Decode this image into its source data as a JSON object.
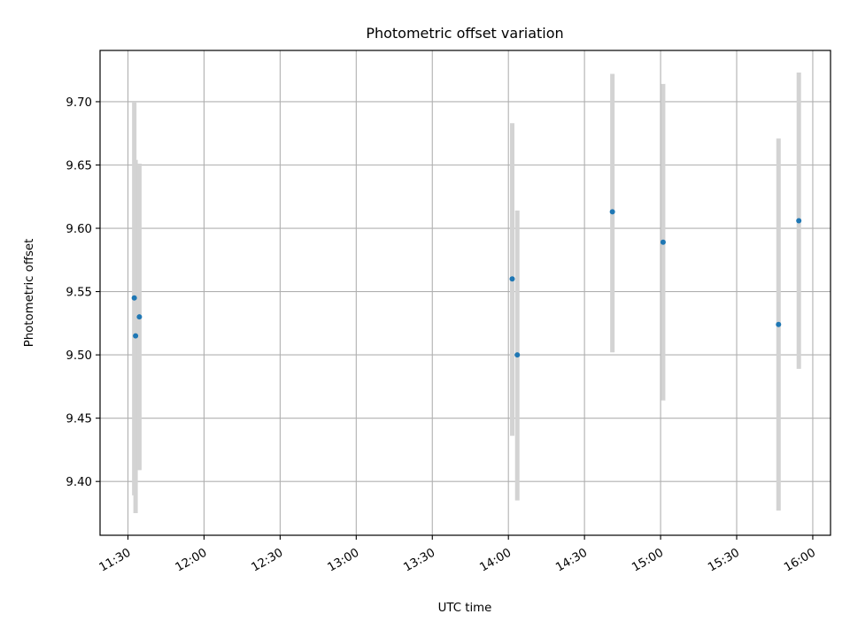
{
  "chart_data": {
    "type": "scatter",
    "title": "Photometric offset variation",
    "xlabel": "UTC time",
    "ylabel": "Photometric offset",
    "xlim": [
      "11:19",
      "16:07"
    ],
    "ylim": [
      9.3575,
      9.7405
    ],
    "x_ticks": [
      "11:30",
      "12:00",
      "12:30",
      "13:00",
      "13:30",
      "14:00",
      "14:30",
      "15:00",
      "15:30",
      "16:00"
    ],
    "y_ticks": [
      "9.40",
      "9.45",
      "9.50",
      "9.55",
      "9.60",
      "9.65",
      "9.70"
    ],
    "grid": true,
    "marker_color": "#1f77b4",
    "errorbar_color": "#d3d3d3",
    "points": [
      {
        "time": "11:32:30",
        "value": 9.545,
        "err_low": 9.389,
        "err_high": 9.7
      },
      {
        "time": "11:33:00",
        "value": 9.515,
        "err_low": 9.375,
        "err_high": 9.654
      },
      {
        "time": "11:34:30",
        "value": 9.53,
        "err_low": 9.409,
        "err_high": 9.651
      },
      {
        "time": "14:01:30",
        "value": 9.56,
        "err_low": 9.436,
        "err_high": 9.683
      },
      {
        "time": "14:03:30",
        "value": 9.5,
        "err_low": 9.385,
        "err_high": 9.614
      },
      {
        "time": "14:41:00",
        "value": 9.613,
        "err_low": 9.502,
        "err_high": 9.722
      },
      {
        "time": "15:01:00",
        "value": 9.589,
        "err_low": 9.464,
        "err_high": 9.714
      },
      {
        "time": "15:46:30",
        "value": 9.524,
        "err_low": 9.377,
        "err_high": 9.671
      },
      {
        "time": "15:54:30",
        "value": 9.606,
        "err_low": 9.489,
        "err_high": 9.723
      }
    ]
  }
}
